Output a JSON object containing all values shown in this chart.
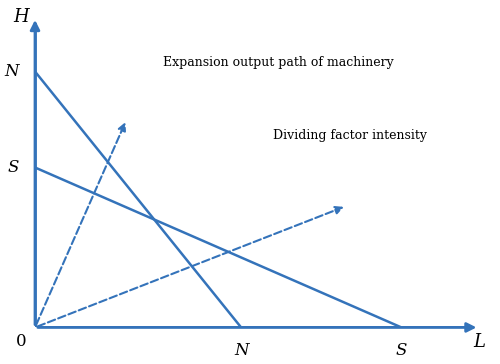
{
  "line_color": "#3473ba",
  "background": "#ffffff",
  "xlim": [
    0,
    10
  ],
  "ylim": [
    0,
    10
  ],
  "H_label": "H",
  "L_label": "L",
  "zero_label": "0",
  "N_x_label": "N",
  "S_x_label": "S",
  "N_y_label": "N",
  "S_y_label": "S",
  "N_y": 8.0,
  "S_y": 5.0,
  "N_x": 4.5,
  "S_x": 8.0,
  "annotation1": "Expansion output path of machinery",
  "annotation2": "Dividing factor intensity",
  "figsize": [
    5.0,
    3.64
  ],
  "dpi": 100
}
